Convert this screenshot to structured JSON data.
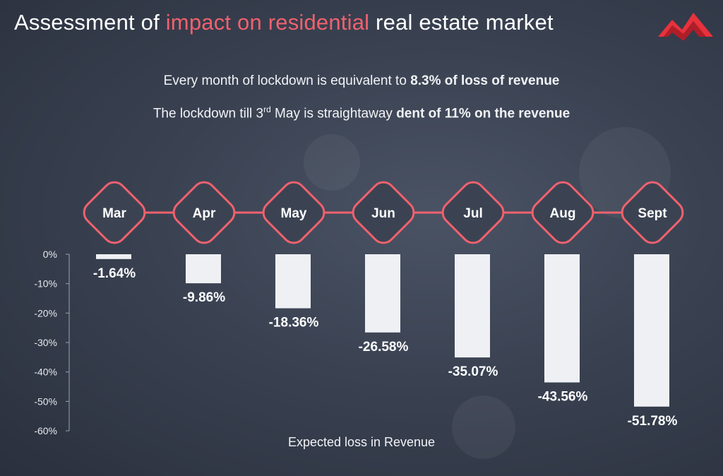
{
  "header": {
    "title_part1": "Assessment of ",
    "title_highlight": "impact on residential",
    "title_part2": " real estate market",
    "highlight_color": "#f0616e",
    "logo_icon": "mountain-logo-icon"
  },
  "subtitles": {
    "line1_text": "Every month of lockdown is equivalent to ",
    "line1_bold": "8.3% of loss of revenue",
    "line2_text_a": "The lockdown till 3",
    "line2_sup": "rd",
    "line2_text_b": " May is straightaway ",
    "line2_bold": "dent of 11% on the revenue"
  },
  "chart_data": {
    "type": "bar",
    "categories": [
      "Mar",
      "Apr",
      "May",
      "Jun",
      "Jul",
      "Aug",
      "Sept"
    ],
    "values": [
      -1.64,
      -9.86,
      -18.36,
      -26.58,
      -35.07,
      -43.56,
      -51.78
    ],
    "data_labels": [
      "-1.64%",
      "-9.86%",
      "-18.36%",
      "-26.58%",
      "-35.07%",
      "-43.56%",
      "-51.78%"
    ],
    "yticks": [
      "0%",
      "-10%",
      "-20%",
      "-30%",
      "-40%",
      "-50%",
      "-60%"
    ],
    "ylim": [
      -60,
      0
    ],
    "xlabel": "Expected loss in Revenue",
    "title": "",
    "ylabel": "",
    "bar_color": "#eef0f4",
    "marker_color": "#f0616e",
    "grid": false
  }
}
